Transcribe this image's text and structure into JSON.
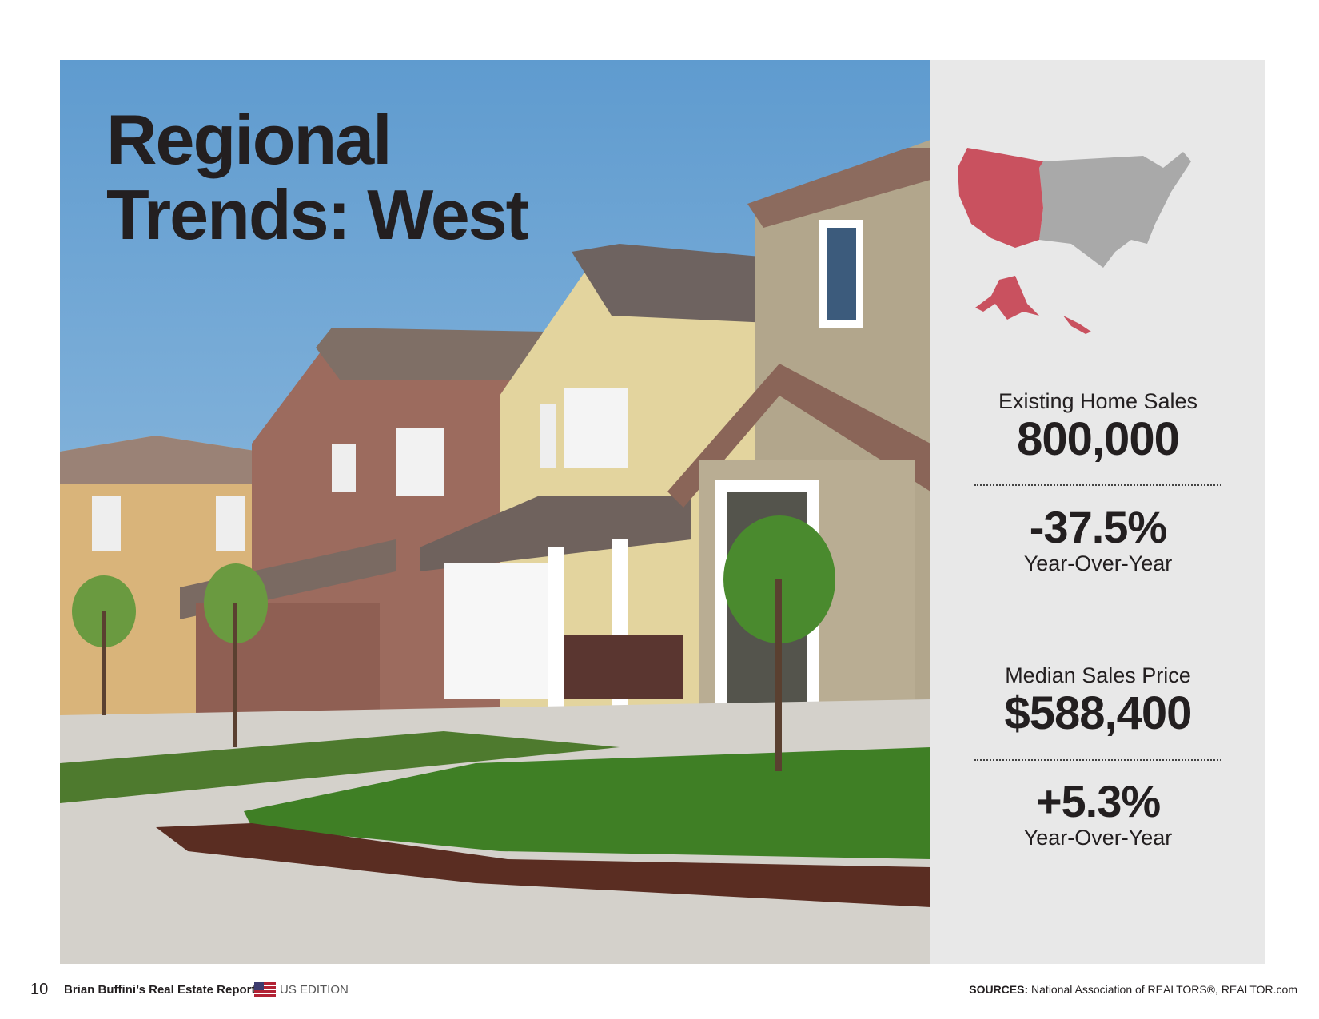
{
  "header": {
    "title": "Regional Trends: West"
  },
  "stats": [
    {
      "label": "Existing Home Sales",
      "value": "800,000",
      "change": "-37.5%",
      "change_label": "Year-Over-Year"
    },
    {
      "label": "Median Sales Price",
      "value": "$588,400",
      "change": "+5.3%",
      "change_label": "Year-Over-Year"
    }
  ],
  "footer": {
    "page_number": "10",
    "report_title": "Brian Buffini’s Real Estate Report",
    "edition": "US EDITION",
    "sources_label": "SOURCES:",
    "sources_text": "National Association of REALTORS®, REALTOR.com"
  }
}
